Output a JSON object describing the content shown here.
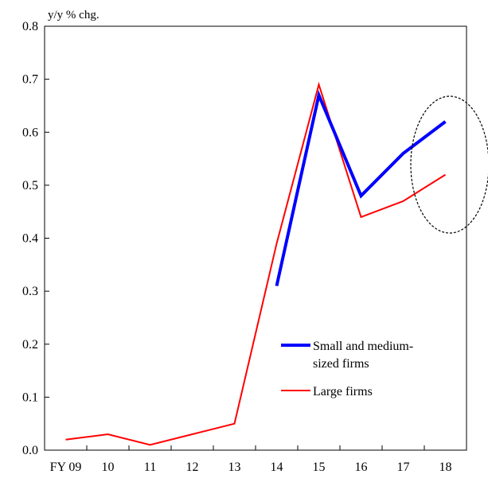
{
  "chart_data": {
    "type": "line",
    "categories": [
      "FY 09",
      "10",
      "11",
      "12",
      "13",
      "14",
      "15",
      "16",
      "17",
      "18"
    ],
    "ylabel": "y/y % chg.",
    "ylim": [
      0,
      0.8
    ],
    "yticks": [
      "0.0",
      "0.1",
      "0.2",
      "0.3",
      "0.4",
      "0.5",
      "0.6",
      "0.7",
      "0.8"
    ],
    "grid": false,
    "legend_position": "lower-right",
    "series": [
      {
        "name": "Small and medium-sized firms",
        "legend_lines": [
          "Small and medium-",
          "sized firms"
        ],
        "color": "#0000ff",
        "values": [
          null,
          null,
          null,
          null,
          null,
          0.31,
          0.67,
          0.48,
          0.56,
          0.62
        ]
      },
      {
        "name": "Large firms",
        "legend_lines": [
          "Large firms"
        ],
        "color": "#ff0000",
        "values": [
          0.02,
          0.03,
          0.01,
          0.03,
          0.05,
          0.39,
          0.69,
          0.44,
          0.47,
          0.52
        ]
      }
    ],
    "annotation": {
      "type": "dashed-ellipse",
      "around": "18"
    }
  }
}
